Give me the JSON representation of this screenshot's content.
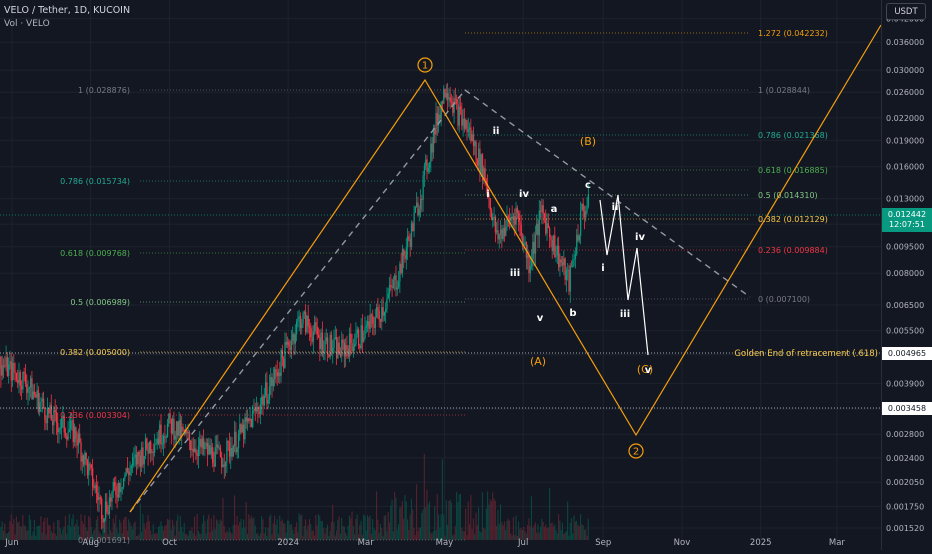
{
  "header": {
    "symbol_title": "VELO / Tether, 1D, KUCOIN",
    "volume_label": "Vol · VELO",
    "currency": "USDT"
  },
  "price_axis": {
    "ticks": [
      "0.042000",
      "0.036000",
      "0.030000",
      "0.026000",
      "0.022000",
      "0.019000",
      "0.016000",
      "0.013000",
      "0.011000",
      "0.009500",
      "0.008000",
      "0.006500",
      "0.005500",
      "0.004700",
      "0.003900",
      "0.003300",
      "0.002800",
      "0.002400",
      "0.002050",
      "0.001750",
      "0.001520"
    ],
    "current_price": "0.012442",
    "countdown": "12:07:51",
    "marker_golden": "0.004965",
    "marker_support": "0.003458",
    "current_color": "#089981"
  },
  "time_axis": {
    "labels": [
      "Jun",
      "Aug",
      "Oct",
      "2024",
      "Mar",
      "May",
      "Jul",
      "Sep",
      "Nov",
      "2025",
      "Mar"
    ]
  },
  "fib_left": [
    {
      "label": "1 (0.028876)",
      "color": "#787b86"
    },
    {
      "label": "0.786 (0.015734)",
      "color": "#22ab94"
    },
    {
      "label": "0.618 (0.009768)",
      "color": "#4caf50"
    },
    {
      "label": "0.5 (0.006989)",
      "color": "#81c784"
    },
    {
      "label": "0.382 (0.005000)",
      "color": "#f7c948"
    },
    {
      "label": "0.236 (0.003304)",
      "color": "#f23645"
    },
    {
      "label": "0 (0.001691)",
      "color": "#787b86"
    }
  ],
  "fib_right": [
    {
      "label": "1.272 (0.042232)",
      "color": "#f59e0b"
    },
    {
      "label": "1 (0.028844)",
      "color": "#787b86"
    },
    {
      "label": "0.786 (0.021368)",
      "color": "#22ab94"
    },
    {
      "label": "0.618 (0.016885)",
      "color": "#4caf50"
    },
    {
      "label": "0.5 (0.014310)",
      "color": "#81c784"
    },
    {
      "label": "0.382 (0.012129)",
      "color": "#f7c948"
    },
    {
      "label": "0.236 (0.009884)",
      "color": "#f23645"
    },
    {
      "label": "0 (0.007100)",
      "color": "#787b86"
    }
  ],
  "golden_label": "Golden End of retracement (.618)",
  "wave_labels": {
    "major": [
      "1",
      "2"
    ],
    "abc_major": [
      "(A)",
      "(B)",
      "(C)"
    ],
    "sub": [
      "i",
      "ii",
      "iii",
      "iv",
      "v",
      "a",
      "b",
      "c",
      "i",
      "ii",
      "iii",
      "iv",
      "v"
    ]
  },
  "colors": {
    "up": "#089981",
    "down": "#f23645",
    "projection": "#f59e0b",
    "wave": "#ffffff"
  },
  "chart_data": {
    "type": "candlestick",
    "pair": "VELO / Tether",
    "interval": "1D",
    "exchange": "KUCOIN",
    "y_scale": "log",
    "ylim": [
      0.00152,
      0.045
    ],
    "x_range": [
      "2023-05-15",
      "2025-04-15"
    ],
    "path_close": [
      [
        "2023-05-20",
        0.0045
      ],
      [
        "2023-06-10",
        0.004
      ],
      [
        "2023-07-01",
        0.0031
      ],
      [
        "2023-07-20",
        0.0028
      ],
      [
        "2023-08-10",
        0.0017
      ],
      [
        "2023-08-25",
        0.0021
      ],
      [
        "2023-09-10",
        0.0025
      ],
      [
        "2023-10-01",
        0.003
      ],
      [
        "2023-10-20",
        0.0026
      ],
      [
        "2023-11-10",
        0.0024
      ],
      [
        "2023-12-01",
        0.003
      ],
      [
        "2023-12-20",
        0.004
      ],
      [
        "2024-01-10",
        0.006
      ],
      [
        "2024-01-25",
        0.0052
      ],
      [
        "2024-02-10",
        0.0048
      ],
      [
        "2024-03-01",
        0.0055
      ],
      [
        "2024-03-15",
        0.0065
      ],
      [
        "2024-03-25",
        0.0078
      ],
      [
        "2024-04-05",
        0.0105
      ],
      [
        "2024-04-15",
        0.015
      ],
      [
        "2024-04-25",
        0.022
      ],
      [
        "2024-05-02",
        0.0275
      ],
      [
        "2024-05-10",
        0.023
      ],
      [
        "2024-05-20",
        0.02
      ],
      [
        "2024-06-01",
        0.015
      ],
      [
        "2024-06-10",
        0.01
      ],
      [
        "2024-06-25",
        0.012
      ],
      [
        "2024-07-05",
        0.0085
      ],
      [
        "2024-07-15",
        0.012
      ],
      [
        "2024-07-25",
        0.0095
      ],
      [
        "2024-08-05",
        0.0075
      ],
      [
        "2024-08-15",
        0.012
      ],
      [
        "2024-08-20",
        0.0124
      ]
    ],
    "volume_profile_note": "daily volume bars along bottom"
  }
}
